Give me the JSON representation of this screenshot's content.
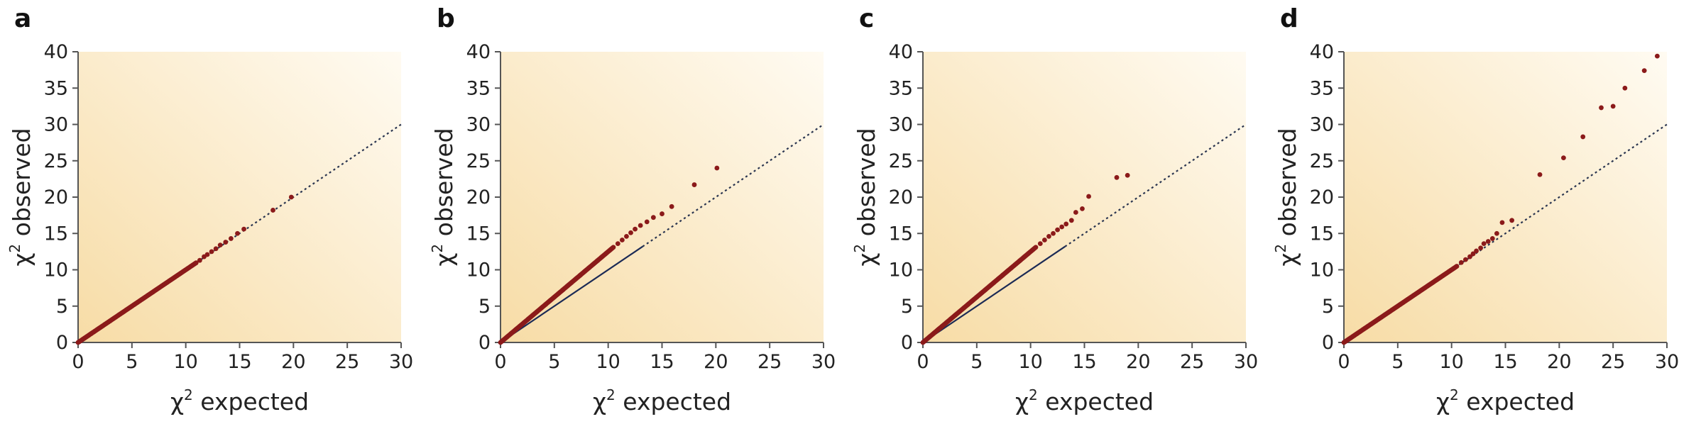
{
  "chart_data": [
    {
      "panel": "a",
      "type": "scatter",
      "xlabel": "χ² expected",
      "ylabel": "χ² observed",
      "xlabel_main": "χ",
      "xlabel_sup": "2",
      "xlabel_rest": " expected",
      "ylabel_main": "χ",
      "ylabel_sup": "2",
      "ylabel_rest": " observed",
      "xlim": [
        0,
        30
      ],
      "ylim": [
        0,
        40
      ],
      "xticks": [
        0,
        5,
        10,
        15,
        20,
        25,
        30
      ],
      "yticks": [
        0,
        5,
        10,
        15,
        20,
        25,
        30,
        35,
        40
      ],
      "dense_trend": {
        "x_end": 11,
        "slope": 1.0
      },
      "outliers": [
        [
          11.3,
          11.3
        ],
        [
          11.7,
          11.8
        ],
        [
          12.0,
          12.1
        ],
        [
          12.4,
          12.5
        ],
        [
          12.8,
          12.9
        ],
        [
          13.2,
          13.4
        ],
        [
          13.7,
          13.8
        ],
        [
          14.2,
          14.3
        ],
        [
          14.8,
          15.0
        ],
        [
          15.4,
          15.6
        ],
        [
          18.1,
          18.2
        ],
        [
          19.8,
          20.0
        ]
      ],
      "null_line": {
        "x": [
          0,
          30
        ],
        "y": [
          0,
          30
        ],
        "style": "dotted"
      }
    },
    {
      "panel": "b",
      "type": "scatter",
      "xlabel": "χ² expected",
      "ylabel": "χ² observed",
      "xlabel_main": "χ",
      "xlabel_sup": "2",
      "xlabel_rest": " expected",
      "ylabel_main": "χ",
      "ylabel_sup": "2",
      "ylabel_rest": " observed",
      "xlim": [
        0,
        30
      ],
      "ylim": [
        0,
        40
      ],
      "xticks": [
        0,
        5,
        10,
        15,
        20,
        25,
        30
      ],
      "yticks": [
        0,
        5,
        10,
        15,
        20,
        25,
        30,
        35,
        40
      ],
      "dense_trend": {
        "x_end": 10.5,
        "slope": 1.25
      },
      "outliers": [
        [
          10.9,
          13.6
        ],
        [
          11.3,
          14.1
        ],
        [
          11.7,
          14.6
        ],
        [
          12.1,
          15.1
        ],
        [
          12.5,
          15.6
        ],
        [
          13.0,
          16.1
        ],
        [
          13.6,
          16.6
        ],
        [
          14.2,
          17.2
        ],
        [
          15.0,
          17.7
        ],
        [
          15.9,
          18.7
        ],
        [
          18.0,
          21.7
        ],
        [
          20.1,
          24.0
        ]
      ],
      "solid_line": {
        "x": [
          0,
          13.2
        ],
        "y": [
          0,
          13.2
        ],
        "style": "solid"
      },
      "null_line": {
        "x": [
          13.2,
          30
        ],
        "y": [
          13.2,
          30
        ],
        "style": "dotted"
      }
    },
    {
      "panel": "c",
      "type": "scatter",
      "xlabel": "χ² expected",
      "ylabel": "χ² observed",
      "xlabel_main": "χ",
      "xlabel_sup": "2",
      "xlabel_rest": " expected",
      "ylabel_main": "χ",
      "ylabel_sup": "2",
      "ylabel_rest": " observed",
      "xlim": [
        0,
        30
      ],
      "ylim": [
        0,
        40
      ],
      "xticks": [
        0,
        5,
        10,
        15,
        20,
        25,
        30
      ],
      "yticks": [
        0,
        5,
        10,
        15,
        20,
        25,
        30,
        35,
        40
      ],
      "dense_trend": {
        "x_end": 10.5,
        "slope": 1.25
      },
      "outliers": [
        [
          10.9,
          13.6
        ],
        [
          11.3,
          14.1
        ],
        [
          11.7,
          14.6
        ],
        [
          12.1,
          15.0
        ],
        [
          12.5,
          15.5
        ],
        [
          12.9,
          15.9
        ],
        [
          13.3,
          16.3
        ],
        [
          13.8,
          16.8
        ],
        [
          14.2,
          17.9
        ],
        [
          14.8,
          18.4
        ],
        [
          15.4,
          20.1
        ],
        [
          18.0,
          22.7
        ],
        [
          19.0,
          23.0
        ]
      ],
      "solid_line": {
        "x": [
          0,
          13.2
        ],
        "y": [
          0,
          13.2
        ],
        "style": "solid"
      },
      "null_line": {
        "x": [
          13.2,
          30
        ],
        "y": [
          13.2,
          30
        ],
        "style": "dotted"
      }
    },
    {
      "panel": "d",
      "type": "scatter",
      "xlabel": "χ² expected",
      "ylabel": "χ² observed",
      "xlabel_main": "χ",
      "xlabel_sup": "2",
      "xlabel_rest": " expected",
      "ylabel_main": "χ",
      "ylabel_sup": "2",
      "ylabel_rest": " observed",
      "xlim": [
        0,
        30
      ],
      "ylim": [
        0,
        40
      ],
      "xticks": [
        0,
        5,
        10,
        15,
        20,
        25,
        30
      ],
      "yticks": [
        0,
        5,
        10,
        15,
        20,
        25,
        30,
        35,
        40
      ],
      "dense_trend": {
        "x_end": 10.5,
        "slope": 1.0
      },
      "outliers": [
        [
          10.9,
          11.0
        ],
        [
          11.3,
          11.4
        ],
        [
          11.7,
          11.8
        ],
        [
          12.0,
          12.2
        ],
        [
          12.3,
          12.6
        ],
        [
          12.7,
          13.0
        ],
        [
          13.0,
          13.6
        ],
        [
          13.4,
          13.9
        ],
        [
          13.8,
          14.3
        ],
        [
          14.2,
          15.0
        ],
        [
          14.7,
          16.5
        ],
        [
          15.6,
          16.8
        ],
        [
          18.2,
          23.1
        ],
        [
          20.4,
          25.4
        ],
        [
          22.2,
          28.3
        ],
        [
          23.9,
          32.3
        ],
        [
          25.0,
          32.5
        ],
        [
          26.1,
          35.0
        ],
        [
          27.9,
          37.4
        ],
        [
          29.1,
          39.4
        ]
      ],
      "null_line": {
        "x": [
          0,
          30
        ],
        "y": [
          0,
          30
        ],
        "style": "dotted"
      }
    }
  ],
  "colors": {
    "points": "#8b1a1a",
    "solid_line": "#1b2a55",
    "dotted_line": "#2a3550",
    "axis": "#555555",
    "bg_dark": "#f7dca6",
    "bg_light": "#fffaf0"
  }
}
